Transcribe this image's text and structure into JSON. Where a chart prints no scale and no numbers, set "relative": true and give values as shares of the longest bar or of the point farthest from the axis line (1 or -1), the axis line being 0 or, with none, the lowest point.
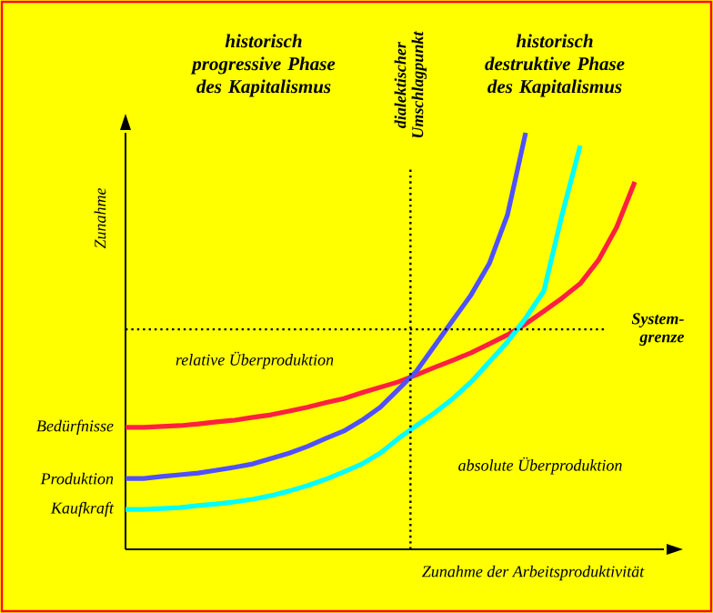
{
  "chart_data": {
    "type": "line",
    "relative": true,
    "xlabel": "Zunahme der Arbeitsproduktivität",
    "ylabel": "Zunahme",
    "marker": "none",
    "line_style": "solid",
    "categories": [
      null,
      null,
      null,
      null,
      null,
      null,
      null,
      null,
      null,
      null,
      null,
      null,
      null,
      null,
      null,
      null,
      null,
      null,
      null,
      null,
      null,
      null,
      null,
      null,
      null,
      null,
      null,
      null,
      null,
      null
    ],
    "series": [
      {
        "name": "Bedürfnisse",
        "color": "#ff2040",
        "values": [
          0.293,
          0.293,
          0.295,
          0.297,
          0.301,
          0.306,
          0.31,
          0.317,
          0.323,
          0.332,
          0.341,
          0.352,
          0.362,
          0.376,
          0.389,
          0.402,
          0.419,
          0.437,
          0.454,
          0.472,
          0.493,
          0.515,
          0.541,
          0.572,
          0.603,
          0.638,
          0.694,
          0.773,
          0.882,
          null
        ]
      },
      {
        "name": "Produktion",
        "color": "#5050ff",
        "values": [
          0.17,
          0.17,
          0.175,
          0.179,
          0.183,
          0.19,
          0.197,
          0.205,
          0.218,
          0.231,
          0.247,
          0.266,
          0.284,
          0.31,
          0.341,
          0.384,
          0.428,
          0.489,
          0.55,
          0.611,
          0.686,
          0.803,
          1.0,
          null,
          null,
          null,
          null,
          null,
          null,
          null
        ]
      },
      {
        "name": "Kaufkraft",
        "color": "#00ffff",
        "values": [
          0.096,
          0.096,
          0.098,
          0.1,
          0.105,
          0.109,
          0.114,
          0.12,
          0.129,
          0.14,
          0.153,
          0.168,
          0.186,
          0.205,
          0.231,
          0.266,
          0.297,
          0.328,
          0.362,
          0.402,
          0.45,
          0.498,
          0.555,
          0.62,
          0.803,
          0.969,
          null,
          null,
          null,
          null
        ]
      }
    ],
    "ref_lines": [
      {
        "axis": "y",
        "value": 0.528,
        "label": "System-grenze",
        "line_style": "dotted"
      }
    ],
    "annotations": [
      "historisch progressive Phase des Kapitalismus",
      "historisch destruktive Phase des Kapitalismus",
      "relative Überproduktion",
      "absolute Überproduktion",
      "dialektischer Umschlagpunkt"
    ]
  }
}
